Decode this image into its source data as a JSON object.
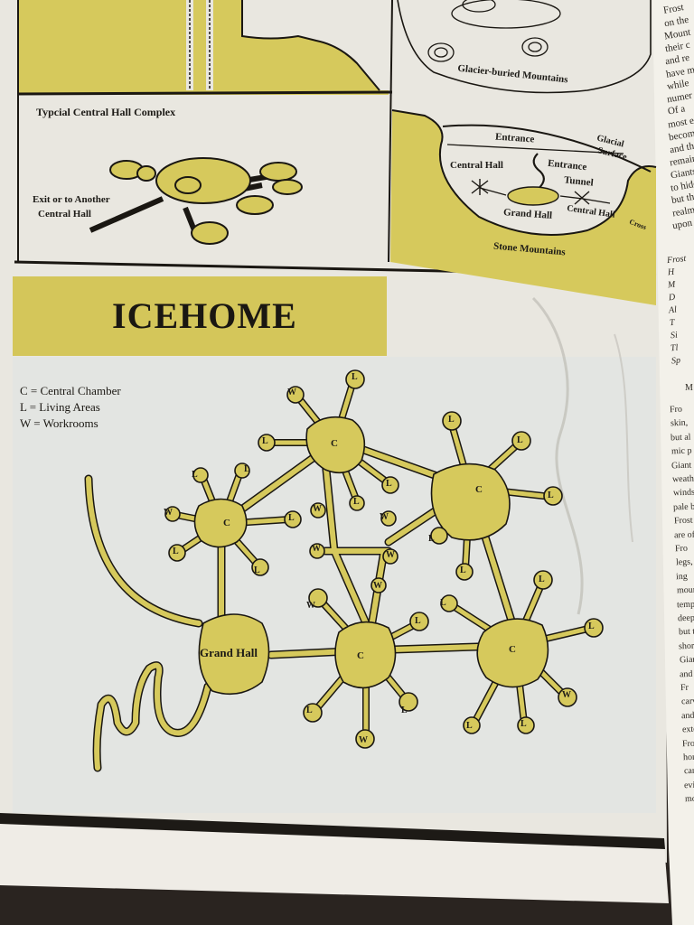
{
  "title": "ICEHOME",
  "legend": {
    "c": "C = Central Chamber",
    "l": "L = Living Areas",
    "w": "W = Workrooms"
  },
  "panels": {
    "glacier": "Glacier-buried Mountains",
    "complex": {
      "title": "Typcial Central Hall Complex",
      "exit": "Exit or to Another",
      "exit2": "Central Hall"
    },
    "stone": {
      "entrance": "Entrance",
      "glacial": "Glacial",
      "surface": "Surface",
      "central_hall": "Central Hall",
      "entrance2": "Entrance",
      "tunnel": "Tunnel",
      "grand_hall": "Grand Hall",
      "central_hall2": "Central Hall",
      "cross": "Cross",
      "stone_mountains": "Stone Mountains"
    }
  },
  "map": {
    "grand_hall": "Grand Hall",
    "c": "C",
    "l": "L",
    "w": "W"
  },
  "right_column": {
    "top": [
      "Frost",
      "on the",
      "Mount",
      "their c",
      "and re",
      "have m",
      "while",
      "numer",
      "Of a",
      "most e",
      "becom",
      "and th",
      "remair",
      "Giants",
      "to hide",
      "but th",
      "realms",
      "upon t"
    ],
    "sidebar": [
      "Frost",
      "H",
      "M",
      "D",
      "Al",
      "T",
      "Si",
      "Tl",
      "Sp"
    ],
    "mid": [
      "M"
    ],
    "body": [
      "Fro",
      "skin,",
      "but al",
      "mic p",
      "Giant",
      "weath",
      "winds",
      "pale b",
      "Frost",
      "are of",
      "Fro",
      "legs,",
      "ing",
      "moun",
      "temp",
      "deep",
      "but t",
      "short",
      "Gian",
      "and l",
      "Fr",
      "carve",
      "and",
      "exter",
      "Fros",
      "hom",
      "carv",
      "evid",
      "mol"
    ]
  },
  "colors": {
    "accent": "#d4c65a",
    "paper": "#ebe9e2",
    "ink": "#1a1712"
  }
}
